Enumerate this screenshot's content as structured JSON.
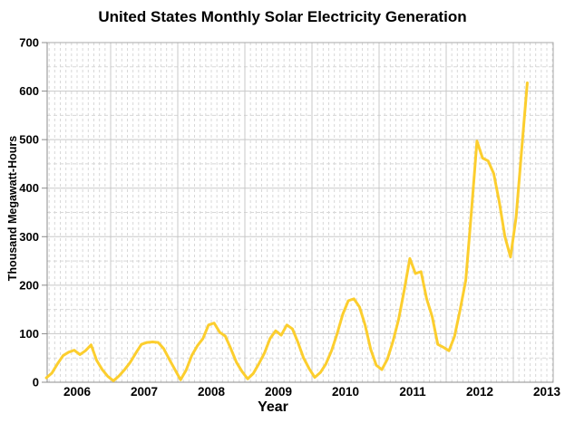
{
  "chart_data": {
    "type": "line",
    "title": "United States Monthly Solar Electricity Generation",
    "xlabel": "Year",
    "ylabel": "Thousand Megawatt-Hours",
    "x_tick_labels": [
      "2006",
      "2007",
      "2008",
      "2009",
      "2010",
      "2011",
      "2012",
      "2013"
    ],
    "y_ticks": [
      0,
      100,
      200,
      300,
      400,
      500,
      600,
      700
    ],
    "ylim": [
      0,
      700
    ],
    "x_start": "2006-01",
    "x_end": "2013-03",
    "grid": {
      "major_horizontal": "solid every 100",
      "minor_horizontal": "dashed every 50",
      "major_vertical": "solid at year boundaries",
      "minor_vertical": "dashed every month"
    },
    "legend": "none",
    "series": [
      {
        "name": "Monthly solar electricity generation",
        "unit": "thousand megawatt-hours",
        "color": "#FCCE2E",
        "monthly_values": [
          9,
          19,
          38,
          55,
          62,
          66,
          57,
          65,
          77,
          45,
          26,
          12,
          3,
          13,
          26,
          41,
          60,
          78,
          82,
          83,
          82,
          69,
          47,
          26,
          5,
          25,
          55,
          75,
          90,
          118,
          122,
          103,
          95,
          69,
          41,
          22,
          7,
          18,
          38,
          60,
          90,
          106,
          97,
          118,
          110,
          82,
          50,
          28,
          10,
          20,
          38,
          65,
          100,
          140,
          168,
          172,
          155,
          118,
          68,
          35,
          26,
          48,
          85,
          130,
          190,
          255,
          224,
          228,
          172,
          135,
          78,
          72,
          65,
          95,
          150,
          210,
          350,
          497,
          462,
          456,
          430,
          371,
          300,
          258,
          340,
          480,
          617
        ]
      }
    ]
  },
  "colors": {
    "background": "#ffffff",
    "line": "#FCCE2E",
    "grid_major": "#c8c8c8",
    "grid_minor": "#d8d8d8",
    "frame": "#a9a9a9",
    "axis": "#8c8c8c",
    "text": "#000000"
  }
}
